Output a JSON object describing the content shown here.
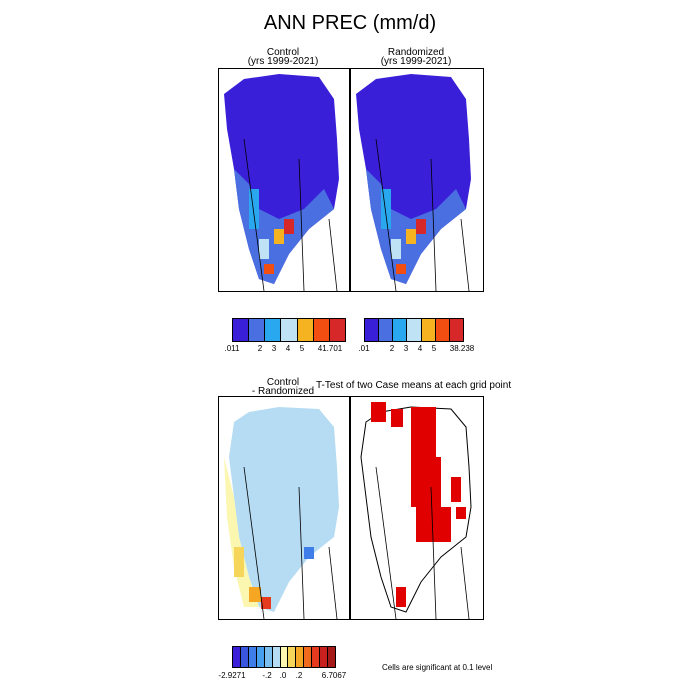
{
  "title": "ANN PREC (mm/d)",
  "panels": {
    "control": {
      "title_line1": "Control",
      "title_line2": "(yrs 1999-2021)"
    },
    "randomized": {
      "title_line1": "Randomized",
      "title_line2": "(yrs 1999-2021)"
    },
    "difference": {
      "title_line1": "Control",
      "title_line2": "- Randomized"
    },
    "ttest": {
      "title": "T-Test of two Case means at each grid point"
    }
  },
  "colorbars": {
    "top_left": {
      "colors": [
        "#3a1fd9",
        "#4a6fe0",
        "#29a8f0",
        "#bfe3f5",
        "#f5b321",
        "#f24e12",
        "#d62828",
        "#b02020"
      ],
      "tick_labels": [
        ".011",
        "2",
        "3",
        "4",
        "5",
        "41.701"
      ]
    },
    "top_right": {
      "colors": [
        "#3a1fd9",
        "#4a6fe0",
        "#29a8f0",
        "#bfe3f5",
        "#f5b321",
        "#f24e12",
        "#d62828",
        "#b02020"
      ],
      "tick_labels": [
        ".01",
        "2",
        "3",
        "4",
        "5",
        "38.238"
      ]
    },
    "bottom": {
      "colors": [
        "#3a1fd9",
        "#3a56e0",
        "#3f7ee8",
        "#46a0ee",
        "#7cc0f0",
        "#b5dcf3",
        "#fbf6b0",
        "#f5d55a",
        "#f5a623",
        "#f26b1d",
        "#e63a1e",
        "#c81f1f",
        "#a51919"
      ],
      "tick_labels": [
        "-2.9271",
        "-.2",
        ".0",
        ".2",
        "6.7067"
      ]
    }
  },
  "significance_note": "Cells are significant at 0.1 level"
}
